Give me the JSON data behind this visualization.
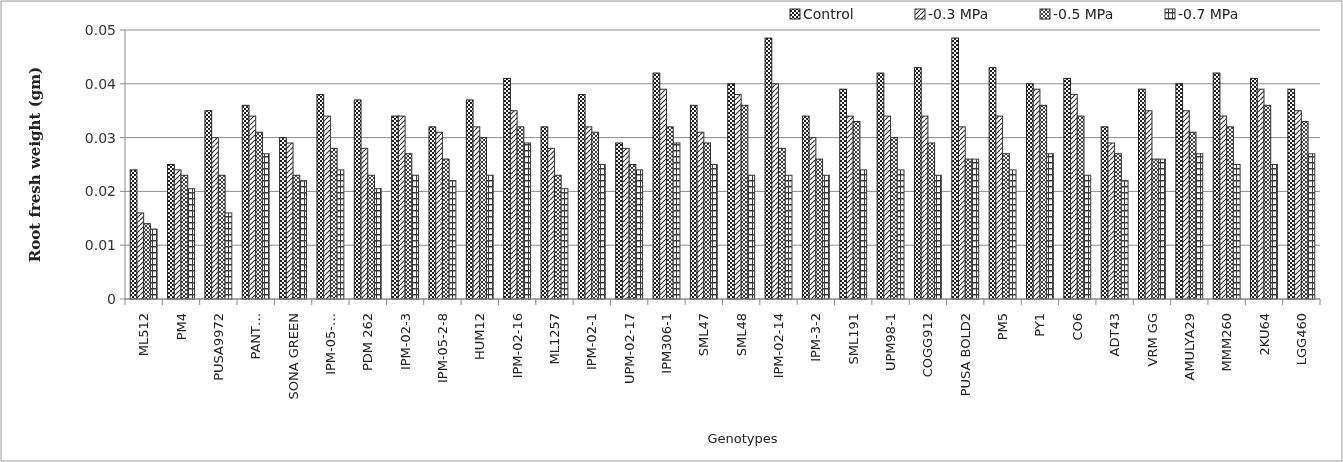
{
  "chart_data": {
    "type": "bar",
    "xlabel": "Genotypes",
    "ylabel": "Root fresh weight (gm)",
    "categories": [
      "ML512",
      "PM4",
      "PUSA9972",
      "PANT…",
      "SONA GREEN",
      "IPM-05-…",
      "PDM 262",
      "IPM-02-3",
      "IPM-05-2-8",
      "HUM12",
      "IPM-02-16",
      "ML1257",
      "IPM-02-1",
      "UPM-02-17",
      "IPM306-1",
      "SML47",
      "SML48",
      "IPM-02-14",
      "IPM-3-2",
      "SML191",
      "UPM98-1",
      "COGG912",
      "PUSA BOLD2",
      "PM5",
      "PY1",
      "CO6",
      "ADT43",
      "VRM GG",
      "AMULYA29",
      "MMM260",
      "2KU64",
      "LGG460"
    ],
    "series": [
      {
        "name": "Control",
        "color": "#222222",
        "values": [
          0.024,
          0.025,
          0.035,
          0.036,
          0.03,
          0.038,
          0.037,
          0.034,
          0.032,
          0.037,
          0.041,
          0.032,
          0.038,
          0.029,
          0.042,
          0.036,
          0.04,
          0.0485,
          0.034,
          0.039,
          0.042,
          0.043,
          0.0485,
          0.043,
          0.04,
          0.041,
          0.032,
          0.039,
          0.04,
          0.042,
          0.041,
          0.039
        ]
      },
      {
        "name": "-0.3 MPa",
        "color": "#333333",
        "values": [
          0.016,
          0.024,
          0.03,
          0.034,
          0.029,
          0.034,
          0.028,
          0.034,
          0.031,
          0.032,
          0.035,
          0.028,
          0.032,
          0.028,
          0.039,
          0.031,
          0.038,
          0.04,
          0.03,
          0.034,
          0.034,
          0.034,
          0.032,
          0.034,
          0.039,
          0.038,
          0.029,
          0.035,
          0.035,
          0.034,
          0.039,
          0.035
        ]
      },
      {
        "name": "-0.5 MPa",
        "color": "#2a2a2a",
        "values": [
          0.014,
          0.023,
          0.023,
          0.031,
          0.023,
          0.028,
          0.023,
          0.027,
          0.026,
          0.03,
          0.032,
          0.023,
          0.031,
          0.025,
          0.032,
          0.029,
          0.036,
          0.028,
          0.026,
          0.033,
          0.03,
          0.029,
          0.026,
          0.027,
          0.036,
          0.034,
          0.027,
          0.026,
          0.031,
          0.032,
          0.036,
          0.033
        ]
      },
      {
        "name": "-0.7 MPa",
        "color": "#3a3a3a",
        "values": [
          0.013,
          0.0205,
          0.016,
          0.027,
          0.022,
          0.024,
          0.0205,
          0.023,
          0.022,
          0.023,
          0.029,
          0.0205,
          0.025,
          0.024,
          0.029,
          0.025,
          0.023,
          0.023,
          0.023,
          0.024,
          0.024,
          0.023,
          0.026,
          0.024,
          0.027,
          0.023,
          0.022,
          0.026,
          0.027,
          0.025,
          0.025,
          0.027
        ]
      }
    ],
    "ylim": [
      0,
      0.05
    ],
    "yticks": [
      0,
      0.01,
      0.02,
      0.03,
      0.04,
      0.05
    ],
    "grid": "y",
    "legend": "top right"
  }
}
